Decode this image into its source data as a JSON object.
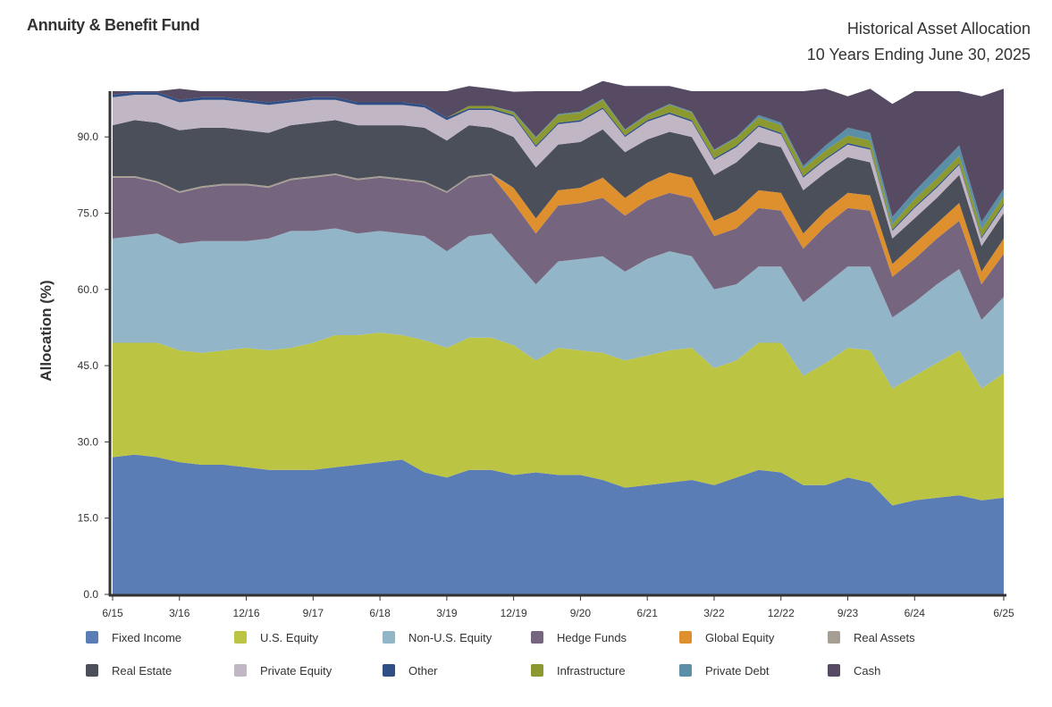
{
  "header": {
    "fund_name": "Annuity & Benefit Fund",
    "title_line1": "Historical Asset Allocation",
    "title_line2": "10 Years Ending June 30, 2025"
  },
  "chart_data": {
    "type": "area",
    "stacked": true,
    "title": "Historical Asset Allocation",
    "subtitle": "10 Years Ending June 30, 2025",
    "xlabel": "",
    "ylabel": "Allocation (%)",
    "ylim": [
      0,
      99
    ],
    "yticks": [
      "0.0",
      "15.0",
      "30.0",
      "45.0",
      "60.0",
      "75.0",
      "90.0"
    ],
    "ytick_values": [
      0,
      15,
      30,
      45,
      60,
      75,
      90
    ],
    "xticks": [
      "6/15",
      "3/16",
      "12/16",
      "9/17",
      "6/18",
      "3/19",
      "12/19",
      "9/20",
      "6/21",
      "3/22",
      "12/22",
      "9/23",
      "6/24",
      "6/25"
    ],
    "xtick_index": [
      0,
      3,
      6,
      9,
      12,
      15,
      18,
      21,
      24,
      27,
      30,
      33,
      36,
      40
    ],
    "x": [
      "6/15",
      "9/15",
      "12/15",
      "3/16",
      "6/16",
      "9/16",
      "12/16",
      "3/17",
      "6/17",
      "9/17",
      "12/17",
      "3/18",
      "6/18",
      "9/18",
      "12/18",
      "3/19",
      "6/19",
      "9/19",
      "12/19",
      "3/20",
      "6/20",
      "9/20",
      "12/20",
      "3/21",
      "6/21",
      "9/21",
      "12/21",
      "3/22",
      "6/22",
      "9/22",
      "12/22",
      "3/23",
      "6/23",
      "9/23",
      "12/23",
      "3/24",
      "6/24",
      "9/24",
      "12/24",
      "3/25",
      "6/25"
    ],
    "grid": false,
    "legend_position": "bottom",
    "series": [
      {
        "name": "Fixed Income",
        "color": "#5b7db5",
        "values": [
          27.0,
          27.5,
          27.0,
          26.0,
          25.5,
          25.5,
          25.0,
          24.5,
          24.5,
          24.5,
          25.0,
          25.5,
          26.0,
          26.5,
          24.0,
          23.0,
          24.5,
          24.5,
          23.5,
          24.0,
          23.5,
          23.5,
          22.5,
          21.0,
          21.5,
          22.0,
          22.5,
          21.5,
          23.0,
          24.5,
          24.0,
          21.5,
          21.5,
          23.0,
          22.0,
          17.5,
          18.5,
          19.0,
          19.5,
          18.5,
          19.0
        ]
      },
      {
        "name": "U.S. Equity",
        "color": "#bcc443",
        "values": [
          22.5,
          22.0,
          22.5,
          22.0,
          22.0,
          22.5,
          23.5,
          23.5,
          24.0,
          25.0,
          26.0,
          25.5,
          25.5,
          24.5,
          26.0,
          25.5,
          26.0,
          26.0,
          25.5,
          22.0,
          25.0,
          24.5,
          25.0,
          25.0,
          25.5,
          26.0,
          26.0,
          23.0,
          23.0,
          25.0,
          25.5,
          21.5,
          24.0,
          25.5,
          26.0,
          23.0,
          24.5,
          26.5,
          28.5,
          22.0,
          24.5
        ]
      },
      {
        "name": "Non-U.S. Equity",
        "color": "#93b5c8",
        "values": [
          20.5,
          21.0,
          21.5,
          21.0,
          22.0,
          21.5,
          21.0,
          22.0,
          23.0,
          22.0,
          21.0,
          20.0,
          20.0,
          20.0,
          20.5,
          19.0,
          20.0,
          20.5,
          17.0,
          15.0,
          17.0,
          18.0,
          19.0,
          17.5,
          19.0,
          19.5,
          18.0,
          15.5,
          15.0,
          15.0,
          15.0,
          14.5,
          15.5,
          16.0,
          16.5,
          14.0,
          14.5,
          15.5,
          16.0,
          13.5,
          15.0
        ]
      },
      {
        "name": "Hedge Funds",
        "color": "#76657f",
        "values": [
          12.0,
          11.5,
          10.0,
          10.0,
          10.5,
          11.0,
          11.0,
          10.0,
          10.0,
          10.5,
          10.5,
          10.5,
          10.5,
          10.5,
          10.5,
          11.5,
          11.5,
          11.5,
          11.0,
          10.0,
          11.0,
          11.0,
          11.5,
          11.0,
          11.5,
          11.5,
          11.5,
          10.5,
          11.0,
          11.5,
          11.0,
          10.5,
          11.5,
          11.5,
          11.0,
          8.0,
          8.5,
          9.0,
          9.5,
          7.0,
          8.5
        ]
      },
      {
        "name": "Global Equity",
        "color": "#de8f2e",
        "values": [
          0,
          0,
          0,
          0,
          0,
          0,
          0,
          0,
          0,
          0,
          0,
          0,
          0,
          0,
          0,
          0,
          0,
          0,
          3.0,
          3.0,
          3.0,
          3.0,
          4.0,
          3.5,
          3.5,
          4.0,
          4.0,
          3.0,
          3.5,
          3.5,
          3.5,
          3.0,
          3.0,
          3.0,
          3.0,
          2.5,
          3.0,
          3.0,
          3.5,
          2.5,
          3.0
        ]
      },
      {
        "name": "Real Assets",
        "color": "#a69e93",
        "values": [
          0.3,
          0.3,
          0.3,
          0.3,
          0.3,
          0.3,
          0.3,
          0.3,
          0.3,
          0.3,
          0.3,
          0.3,
          0.3,
          0.3,
          0.3,
          0.3,
          0.3,
          0.3,
          0,
          0,
          0,
          0,
          0,
          0,
          0,
          0,
          0,
          0,
          0,
          0,
          0,
          0,
          0,
          0,
          0,
          0,
          0,
          0,
          0,
          0,
          0
        ]
      },
      {
        "name": "Real Estate",
        "color": "#4a4f5a",
        "values": [
          10.0,
          11.0,
          11.5,
          12.0,
          11.5,
          11.0,
          10.5,
          10.5,
          10.5,
          10.5,
          10.5,
          10.5,
          10.0,
          10.5,
          10.5,
          10.0,
          10.0,
          9.0,
          10.0,
          10.0,
          9.0,
          9.0,
          9.5,
          9.0,
          8.5,
          8.0,
          8.0,
          9.0,
          9.5,
          9.5,
          9.0,
          8.5,
          7.5,
          7.0,
          6.5,
          5.0,
          5.0,
          5.0,
          5.5,
          5.0,
          5.0
        ]
      },
      {
        "name": "Private Equity",
        "color": "#c1b6c3",
        "values": [
          5.5,
          5.0,
          5.5,
          5.5,
          5.5,
          5.5,
          5.5,
          5.5,
          4.5,
          4.5,
          4.0,
          4.0,
          4.0,
          4.0,
          4.0,
          4.0,
          3.0,
          3.5,
          4.0,
          4.0,
          4.0,
          4.0,
          4.0,
          3.0,
          3.5,
          3.5,
          3.0,
          3.0,
          3.0,
          3.0,
          2.5,
          2.5,
          2.5,
          2.5,
          2.5,
          1.5,
          2.0,
          2.0,
          2.0,
          1.5,
          1.5
        ]
      },
      {
        "name": "Other",
        "color": "#2f4f86",
        "values": [
          0.5,
          0.5,
          0.5,
          0.5,
          0.5,
          0.5,
          0.5,
          0.5,
          0.5,
          0.5,
          0.5,
          0.5,
          0.5,
          0.5,
          0.5,
          0.5,
          0.3,
          0.3,
          0.3,
          0.3,
          0.3,
          0.3,
          0.3,
          0.3,
          0.3,
          0.3,
          0.3,
          0.3,
          0.3,
          0.3,
          0.3,
          0.3,
          0.3,
          0.3,
          0.3,
          0.3,
          0.3,
          0.3,
          0.3,
          0.3,
          0.3
        ]
      },
      {
        "name": "Infrastructure",
        "color": "#8c9830",
        "values": [
          0,
          0,
          0,
          0,
          0,
          0,
          0,
          0,
          0,
          0,
          0,
          0,
          0,
          0,
          0,
          0,
          0.5,
          0.5,
          0.5,
          1.5,
          1.5,
          1.5,
          1.5,
          1.0,
          1.0,
          1.5,
          1.5,
          1.5,
          1.5,
          1.5,
          1.5,
          1.5,
          1.5,
          1.5,
          1.5,
          1.0,
          1.5,
          1.5,
          1.5,
          1.5,
          1.5
        ]
      },
      {
        "name": "Private Debt",
        "color": "#5b8fa8",
        "values": [
          0,
          0,
          0,
          0,
          0,
          0,
          0,
          0,
          0,
          0,
          0,
          0,
          0,
          0,
          0,
          0,
          0,
          0,
          0.2,
          0.2,
          0.2,
          0.2,
          0.2,
          0.2,
          0.2,
          0.2,
          0.2,
          0.2,
          0.2,
          0.5,
          0.5,
          0.5,
          1.0,
          1.5,
          1.5,
          1.5,
          1.5,
          2.0,
          2.0,
          1.5,
          1.5
        ]
      },
      {
        "name": "Cash",
        "color": "#564b63",
        "values": [
          0.7,
          0.2,
          0.2,
          2.2,
          1.2,
          1.2,
          1.7,
          2.2,
          1.7,
          1.2,
          1.2,
          2.2,
          2.2,
          2.2,
          2.7,
          5.2,
          3.9,
          3.4,
          3.9,
          9.0,
          4.5,
          4.0,
          3.5,
          8.5,
          5.5,
          3.5,
          4.0,
          11.5,
          9.0,
          4.7,
          6.2,
          14.7,
          11.2,
          6.2,
          8.7,
          22.2,
          19.7,
          15.2,
          10.7,
          24.7,
          19.7
        ]
      }
    ]
  }
}
